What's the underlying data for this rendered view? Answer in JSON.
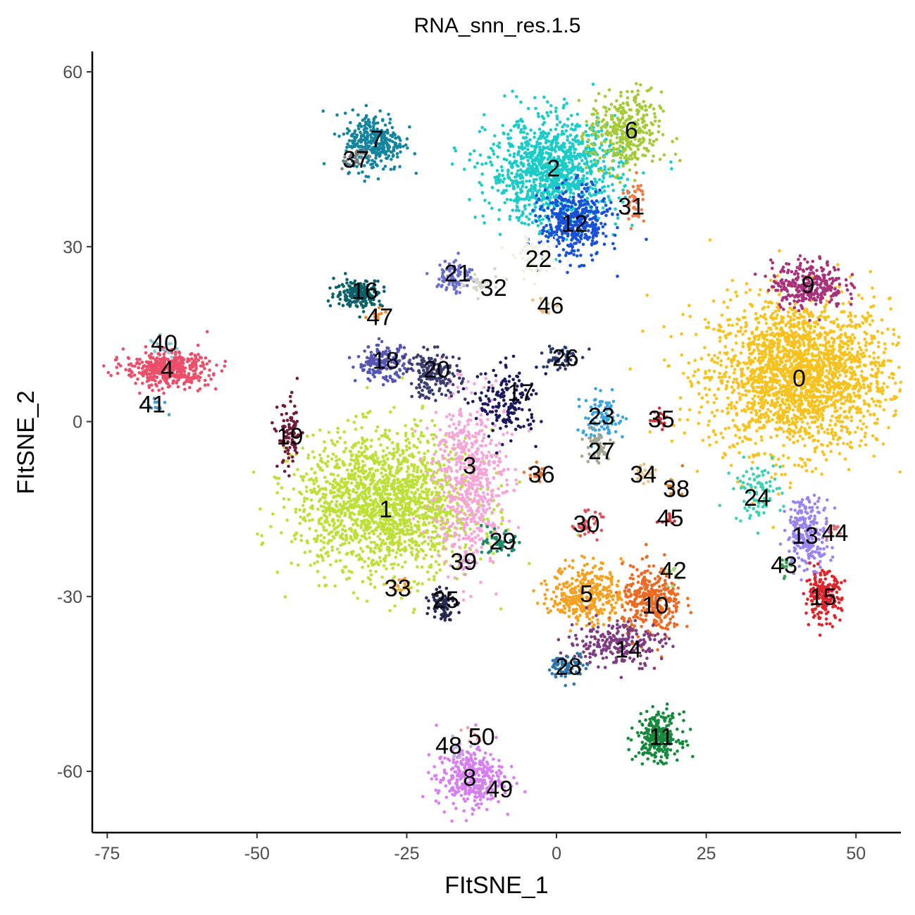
{
  "chart_data": {
    "type": "scatter",
    "title": "RNA_snn_res.1.5",
    "xlabel": "FItSNE_1",
    "ylabel": "FItSNE_2",
    "xlim": [
      -77.5,
      57.5
    ],
    "ylim": [
      -70.5,
      63.5
    ],
    "xticks": [
      -75,
      -50,
      -25,
      0,
      25,
      50
    ],
    "yticks": [
      -60,
      -30,
      0,
      30,
      60
    ],
    "xtick_labels": [
      "-75",
      "-50",
      "-25",
      "0",
      "25",
      "50"
    ],
    "ytick_labels": [
      "-60",
      "-30",
      "0",
      "30",
      "60"
    ],
    "legend": "none",
    "clusters": [
      {
        "id": "0",
        "x": 40.5,
        "y": 8,
        "sx": 7.5,
        "sy": 6.5,
        "n": 2200,
        "color": "#F8C21E"
      },
      {
        "id": "1",
        "x": -28.5,
        "y": -14,
        "sx": 7.5,
        "sy": 6,
        "n": 1800,
        "color": "#BDE038"
      },
      {
        "id": "2",
        "x": -0.5,
        "y": 43,
        "sx": 5.5,
        "sy": 4.5,
        "n": 1100,
        "color": "#1BCBC7"
      },
      {
        "id": "3",
        "x": -14.5,
        "y": -10,
        "sx": 3,
        "sy": 7,
        "n": 600,
        "color": "#F7A5D8"
      },
      {
        "id": "4",
        "x": -65,
        "y": 9,
        "sx": 3.5,
        "sy": 1.5,
        "n": 450,
        "color": "#EC4E6A"
      },
      {
        "id": "5",
        "x": 5,
        "y": -29.5,
        "sx": 3,
        "sy": 2.5,
        "n": 350,
        "color": "#F6A020"
      },
      {
        "id": "6",
        "x": 11.5,
        "y": 49.5,
        "sx": 3,
        "sy": 3.5,
        "n": 350,
        "color": "#A4CA38"
      },
      {
        "id": "7",
        "x": -30.5,
        "y": 48,
        "sx": 2.5,
        "sy": 2.5,
        "n": 320,
        "color": "#14849E"
      },
      {
        "id": "8",
        "x": -14.5,
        "y": -61,
        "sx": 2.8,
        "sy": 2.5,
        "n": 350,
        "color": "#D77FF2"
      },
      {
        "id": "9",
        "x": 42,
        "y": 23.5,
        "sx": 3,
        "sy": 2,
        "n": 300,
        "color": "#A83279"
      },
      {
        "id": "10",
        "x": 16,
        "y": -31,
        "sx": 2.5,
        "sy": 3,
        "n": 330,
        "color": "#EC6A24"
      },
      {
        "id": "11",
        "x": 17,
        "y": -54,
        "sx": 1.8,
        "sy": 2,
        "n": 260,
        "color": "#168A3C"
      },
      {
        "id": "12",
        "x": 3,
        "y": 34,
        "sx": 2.8,
        "sy": 3,
        "n": 420,
        "color": "#1850D6"
      },
      {
        "id": "13",
        "x": 42,
        "y": -19,
        "sx": 1.8,
        "sy": 3,
        "n": 240,
        "color": "#9B83F2"
      },
      {
        "id": "14",
        "x": 10,
        "y": -38,
        "sx": 4,
        "sy": 2,
        "n": 220,
        "color": "#7E3C80"
      },
      {
        "id": "15",
        "x": 44.5,
        "y": -30,
        "sx": 1.5,
        "sy": 2,
        "n": 200,
        "color": "#E0242A"
      },
      {
        "id": "16",
        "x": -33,
        "y": 22,
        "sx": 2,
        "sy": 1.2,
        "n": 200,
        "color": "#0D6068"
      },
      {
        "id": "17",
        "x": -8,
        "y": 3,
        "sx": 2.5,
        "sy": 3,
        "n": 160,
        "color": "#1C1A5C"
      },
      {
        "id": "18",
        "x": -29,
        "y": 10,
        "sx": 2.2,
        "sy": 1.5,
        "n": 170,
        "color": "#5555B3"
      },
      {
        "id": "19",
        "x": -44.5,
        "y": -2.5,
        "sx": 1,
        "sy": 3,
        "n": 90,
        "color": "#701A3A"
      },
      {
        "id": "20",
        "x": -20.5,
        "y": 8,
        "sx": 2.2,
        "sy": 2,
        "n": 170,
        "color": "#3B3C6E"
      },
      {
        "id": "21",
        "x": -17,
        "y": 25,
        "sx": 1.5,
        "sy": 1.5,
        "n": 90,
        "color": "#6A6FCB"
      },
      {
        "id": "22",
        "x": -3,
        "y": 28,
        "sx": 2,
        "sy": 1.5,
        "n": 60,
        "color": "#F2EFE3"
      },
      {
        "id": "23",
        "x": 7.5,
        "y": 0.5,
        "sx": 2,
        "sy": 2,
        "n": 90,
        "color": "#3BA3DD"
      },
      {
        "id": "24",
        "x": 33.5,
        "y": -12,
        "sx": 2,
        "sy": 2.5,
        "n": 90,
        "color": "#3DD1B2"
      },
      {
        "id": "25",
        "x": -19,
        "y": -31,
        "sx": 1,
        "sy": 1.5,
        "n": 80,
        "color": "#27294E"
      },
      {
        "id": "26",
        "x": 0.5,
        "y": 11,
        "sx": 1.5,
        "sy": 1.2,
        "n": 50,
        "color": "#2A3A6A"
      },
      {
        "id": "27",
        "x": 6.5,
        "y": -4.5,
        "sx": 1.5,
        "sy": 1.5,
        "n": 50,
        "color": "#A5A593"
      },
      {
        "id": "28",
        "x": 2,
        "y": -42,
        "sx": 1.5,
        "sy": 1.2,
        "n": 70,
        "color": "#2E74A8"
      },
      {
        "id": "29",
        "x": -9.5,
        "y": -21,
        "sx": 1.3,
        "sy": 1,
        "n": 50,
        "color": "#1D8A6B"
      },
      {
        "id": "30",
        "x": 5,
        "y": -17.5,
        "sx": 1.2,
        "sy": 1,
        "n": 40,
        "color": "#E25058"
      },
      {
        "id": "31",
        "x": 13,
        "y": 38,
        "sx": 0.8,
        "sy": 2,
        "n": 40,
        "color": "#EF7C46"
      },
      {
        "id": "32",
        "x": -12.5,
        "y": 23.5,
        "sx": 1.5,
        "sy": 1,
        "n": 30,
        "color": "#D6D6C8"
      },
      {
        "id": "33",
        "x": -26,
        "y": -28,
        "sx": 1,
        "sy": 1,
        "n": 25,
        "color": "#F0A33A"
      },
      {
        "id": "34",
        "x": 14.5,
        "y": -9,
        "sx": 1,
        "sy": 0.8,
        "n": 20,
        "color": "#E7C28A"
      },
      {
        "id": "35",
        "x": 17,
        "y": 0.5,
        "sx": 0.8,
        "sy": 0.8,
        "n": 20,
        "color": "#C8343A"
      },
      {
        "id": "36",
        "x": -3,
        "y": -9,
        "sx": 0.8,
        "sy": 0.8,
        "n": 20,
        "color": "#E77A3B"
      },
      {
        "id": "37",
        "x": -34,
        "y": 45,
        "sx": 1.2,
        "sy": 1,
        "n": 25,
        "color": "#7D7D7D"
      },
      {
        "id": "38",
        "x": 19.5,
        "y": -11,
        "sx": 0.8,
        "sy": 0.8,
        "n": 15,
        "color": "#C57E2E"
      },
      {
        "id": "39",
        "x": -15,
        "y": -24,
        "sx": 1,
        "sy": 1,
        "n": 15,
        "color": "#DA9CCF"
      },
      {
        "id": "40",
        "x": -66,
        "y": 13,
        "sx": 1.2,
        "sy": 0.8,
        "n": 15,
        "color": "#8DC9DD"
      },
      {
        "id": "41",
        "x": -67,
        "y": 3,
        "sx": 1,
        "sy": 0.8,
        "n": 12,
        "color": "#4B9AC9"
      },
      {
        "id": "42",
        "x": 19.5,
        "y": -26,
        "sx": 0.8,
        "sy": 0.8,
        "n": 12,
        "color": "#A7D678"
      },
      {
        "id": "43",
        "x": 38.5,
        "y": -25,
        "sx": 1,
        "sy": 1,
        "n": 15,
        "color": "#3E9E58"
      },
      {
        "id": "44",
        "x": 46,
        "y": -19,
        "sx": 1,
        "sy": 0.8,
        "n": 12,
        "color": "#E2716E"
      },
      {
        "id": "45",
        "x": 18.5,
        "y": -17,
        "sx": 0.6,
        "sy": 0.6,
        "n": 10,
        "color": "#D2383F"
      },
      {
        "id": "46",
        "x": -2,
        "y": 20,
        "sx": 0.8,
        "sy": 0.8,
        "n": 10,
        "color": "#EEBB7E"
      },
      {
        "id": "47",
        "x": -30,
        "y": 18,
        "sx": 1,
        "sy": 0.8,
        "n": 12,
        "color": "#F38A28"
      },
      {
        "id": "48",
        "x": -16.5,
        "y": -56,
        "sx": 0.8,
        "sy": 0.8,
        "n": 10,
        "color": "#B8B8E8"
      },
      {
        "id": "49",
        "x": -12.5,
        "y": -63,
        "sx": 0.8,
        "sy": 0.8,
        "n": 10,
        "color": "#C98BD9"
      },
      {
        "id": "50",
        "x": -14,
        "y": -54,
        "sx": 0.8,
        "sy": 0.8,
        "n": 10,
        "color": "#F0A0A0"
      }
    ],
    "cluster_labels": [
      {
        "text": "0",
        "x": 40.5,
        "y": 7.5
      },
      {
        "text": "1",
        "x": -28.5,
        "y": -15
      },
      {
        "text": "2",
        "x": -0.5,
        "y": 43.5
      },
      {
        "text": "3",
        "x": -14.5,
        "y": -7.5
      },
      {
        "text": "4",
        "x": -65,
        "y": 9
      },
      {
        "text": "5",
        "x": 5,
        "y": -29.5
      },
      {
        "text": "6",
        "x": 12.5,
        "y": 50
      },
      {
        "text": "7",
        "x": -30,
        "y": 48.5
      },
      {
        "text": "8",
        "x": -14.5,
        "y": -61
      },
      {
        "text": "9",
        "x": 42,
        "y": 23.5
      },
      {
        "text": "10",
        "x": 16.5,
        "y": -31.5
      },
      {
        "text": "11",
        "x": 17.5,
        "y": -54
      },
      {
        "text": "12",
        "x": 3,
        "y": 34
      },
      {
        "text": "13",
        "x": 41.5,
        "y": -19.5
      },
      {
        "text": "14",
        "x": 12,
        "y": -39
      },
      {
        "text": "15",
        "x": 44.5,
        "y": -30
      },
      {
        "text": "16",
        "x": -32,
        "y": 22.5
      },
      {
        "text": "17",
        "x": -6,
        "y": 5
      },
      {
        "text": "18",
        "x": -28.5,
        "y": 10.5
      },
      {
        "text": "19",
        "x": -44.5,
        "y": -2.5
      },
      {
        "text": "20",
        "x": -20,
        "y": 9
      },
      {
        "text": "21",
        "x": -16.5,
        "y": 25.5
      },
      {
        "text": "22",
        "x": -3,
        "y": 28
      },
      {
        "text": "23",
        "x": 7.5,
        "y": 1
      },
      {
        "text": "24",
        "x": 33.5,
        "y": -13
      },
      {
        "text": "25",
        "x": -18.5,
        "y": -30.5
      },
      {
        "text": "26",
        "x": 1.5,
        "y": 11
      },
      {
        "text": "27",
        "x": 7.5,
        "y": -5
      },
      {
        "text": "28",
        "x": 2,
        "y": -42
      },
      {
        "text": "29",
        "x": -9,
        "y": -20.5
      },
      {
        "text": "30",
        "x": 5,
        "y": -17.5
      },
      {
        "text": "31",
        "x": 12.5,
        "y": 37
      },
      {
        "text": "32",
        "x": -10.5,
        "y": 23
      },
      {
        "text": "33",
        "x": -26.5,
        "y": -28.5
      },
      {
        "text": "34",
        "x": 14.5,
        "y": -9
      },
      {
        "text": "35",
        "x": 17.5,
        "y": 0.5
      },
      {
        "text": "36",
        "x": -2.5,
        "y": -9
      },
      {
        "text": "37",
        "x": -33.5,
        "y": 45
      },
      {
        "text": "38",
        "x": 20,
        "y": -11.5
      },
      {
        "text": "39",
        "x": -15.5,
        "y": -24
      },
      {
        "text": "40",
        "x": -65.5,
        "y": 13.5
      },
      {
        "text": "41",
        "x": -67.5,
        "y": 3
      },
      {
        "text": "42",
        "x": 19.5,
        "y": -25.5
      },
      {
        "text": "43",
        "x": 38,
        "y": -24.5
      },
      {
        "text": "44",
        "x": 46.5,
        "y": -19
      },
      {
        "text": "45",
        "x": 19,
        "y": -16.5
      },
      {
        "text": "46",
        "x": -1,
        "y": 20
      },
      {
        "text": "47",
        "x": -29.5,
        "y": 18
      },
      {
        "text": "48",
        "x": -18,
        "y": -55.5
      },
      {
        "text": "49",
        "x": -9.5,
        "y": -63
      },
      {
        "text": "50",
        "x": -12.5,
        "y": -54
      }
    ]
  }
}
